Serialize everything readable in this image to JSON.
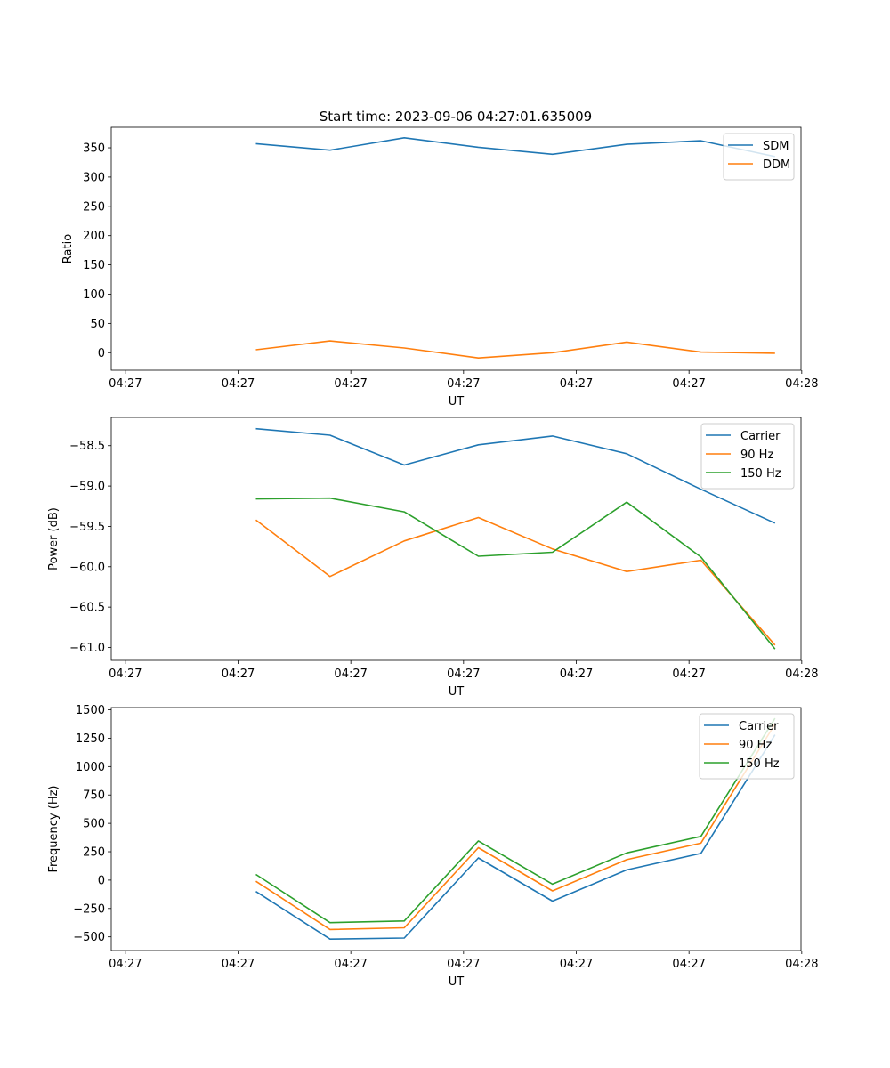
{
  "figure_title": "Start time: 2023-09-06 04:27:01.635009",
  "chart_data": [
    {
      "type": "line",
      "xlabel": "UT",
      "ylabel": "Ratio",
      "x_tick_labels": [
        "04:27",
        "04:27",
        "04:27",
        "04:27",
        "04:27",
        "04:27",
        "04:28"
      ],
      "x": [
        1,
        2,
        3,
        4,
        5,
        6,
        7,
        8
      ],
      "xlim": [
        -0.95,
        8.35
      ],
      "ylim": [
        -30,
        385
      ],
      "yticks": [
        0,
        50,
        100,
        150,
        200,
        250,
        300,
        350
      ],
      "legend_position": "top-right",
      "series": [
        {
          "name": "SDM",
          "color": "#1f77b4",
          "values": [
            357,
            346,
            367,
            351,
            339,
            356,
            362,
            335
          ]
        },
        {
          "name": "DDM",
          "color": "#ff7f0e",
          "values": [
            5,
            20,
            8,
            -9,
            0,
            18,
            1,
            -1
          ]
        }
      ]
    },
    {
      "type": "line",
      "xlabel": "UT",
      "ylabel": "Power (dB)",
      "x_tick_labels": [
        "04:27",
        "04:27",
        "04:27",
        "04:27",
        "04:27",
        "04:27",
        "04:28"
      ],
      "x": [
        1,
        2,
        3,
        4,
        5,
        6,
        7,
        8
      ],
      "xlim": [
        -0.95,
        8.35
      ],
      "ylim": [
        -61.16,
        -58.15
      ],
      "yticks": [
        -61.0,
        -60.5,
        -60.0,
        -59.5,
        -59.0,
        -58.5
      ],
      "legend_position": "top-right",
      "series": [
        {
          "name": "Carrier",
          "color": "#1f77b4",
          "values": [
            -58.29,
            -58.37,
            -58.74,
            -58.49,
            -58.38,
            -58.6,
            -59.04,
            -59.46
          ]
        },
        {
          "name": "90 Hz",
          "color": "#ff7f0e",
          "values": [
            -59.42,
            -60.12,
            -59.68,
            -59.39,
            -59.78,
            -60.06,
            -59.92,
            -60.97
          ]
        },
        {
          "name": "150 Hz",
          "color": "#2ca02c",
          "values": [
            -59.16,
            -59.15,
            -59.32,
            -59.87,
            -59.82,
            -59.2,
            -59.88,
            -61.02
          ]
        }
      ]
    },
    {
      "type": "line",
      "xlabel": "UT",
      "ylabel": "Frequency (Hz)",
      "x_tick_labels": [
        "04:27",
        "04:27",
        "04:27",
        "04:27",
        "04:27",
        "04:27",
        "04:28"
      ],
      "x": [
        1,
        2,
        3,
        4,
        5,
        6,
        7,
        8
      ],
      "xlim": [
        -0.95,
        8.35
      ],
      "ylim": [
        -620,
        1520
      ],
      "yticks": [
        -500,
        -250,
        0,
        250,
        500,
        750,
        1000,
        1250,
        1500
      ],
      "legend_position": "top-right",
      "series": [
        {
          "name": "Carrier",
          "color": "#1f77b4",
          "values": [
            -100,
            -520,
            -510,
            195,
            -185,
            90,
            235,
            1280
          ]
        },
        {
          "name": "90 Hz",
          "color": "#ff7f0e",
          "values": [
            -10,
            -435,
            -420,
            285,
            -95,
            180,
            325,
            1375
          ]
        },
        {
          "name": "150 Hz",
          "color": "#2ca02c",
          "values": [
            50,
            -375,
            -360,
            345,
            -35,
            240,
            385,
            1425
          ]
        }
      ]
    }
  ]
}
